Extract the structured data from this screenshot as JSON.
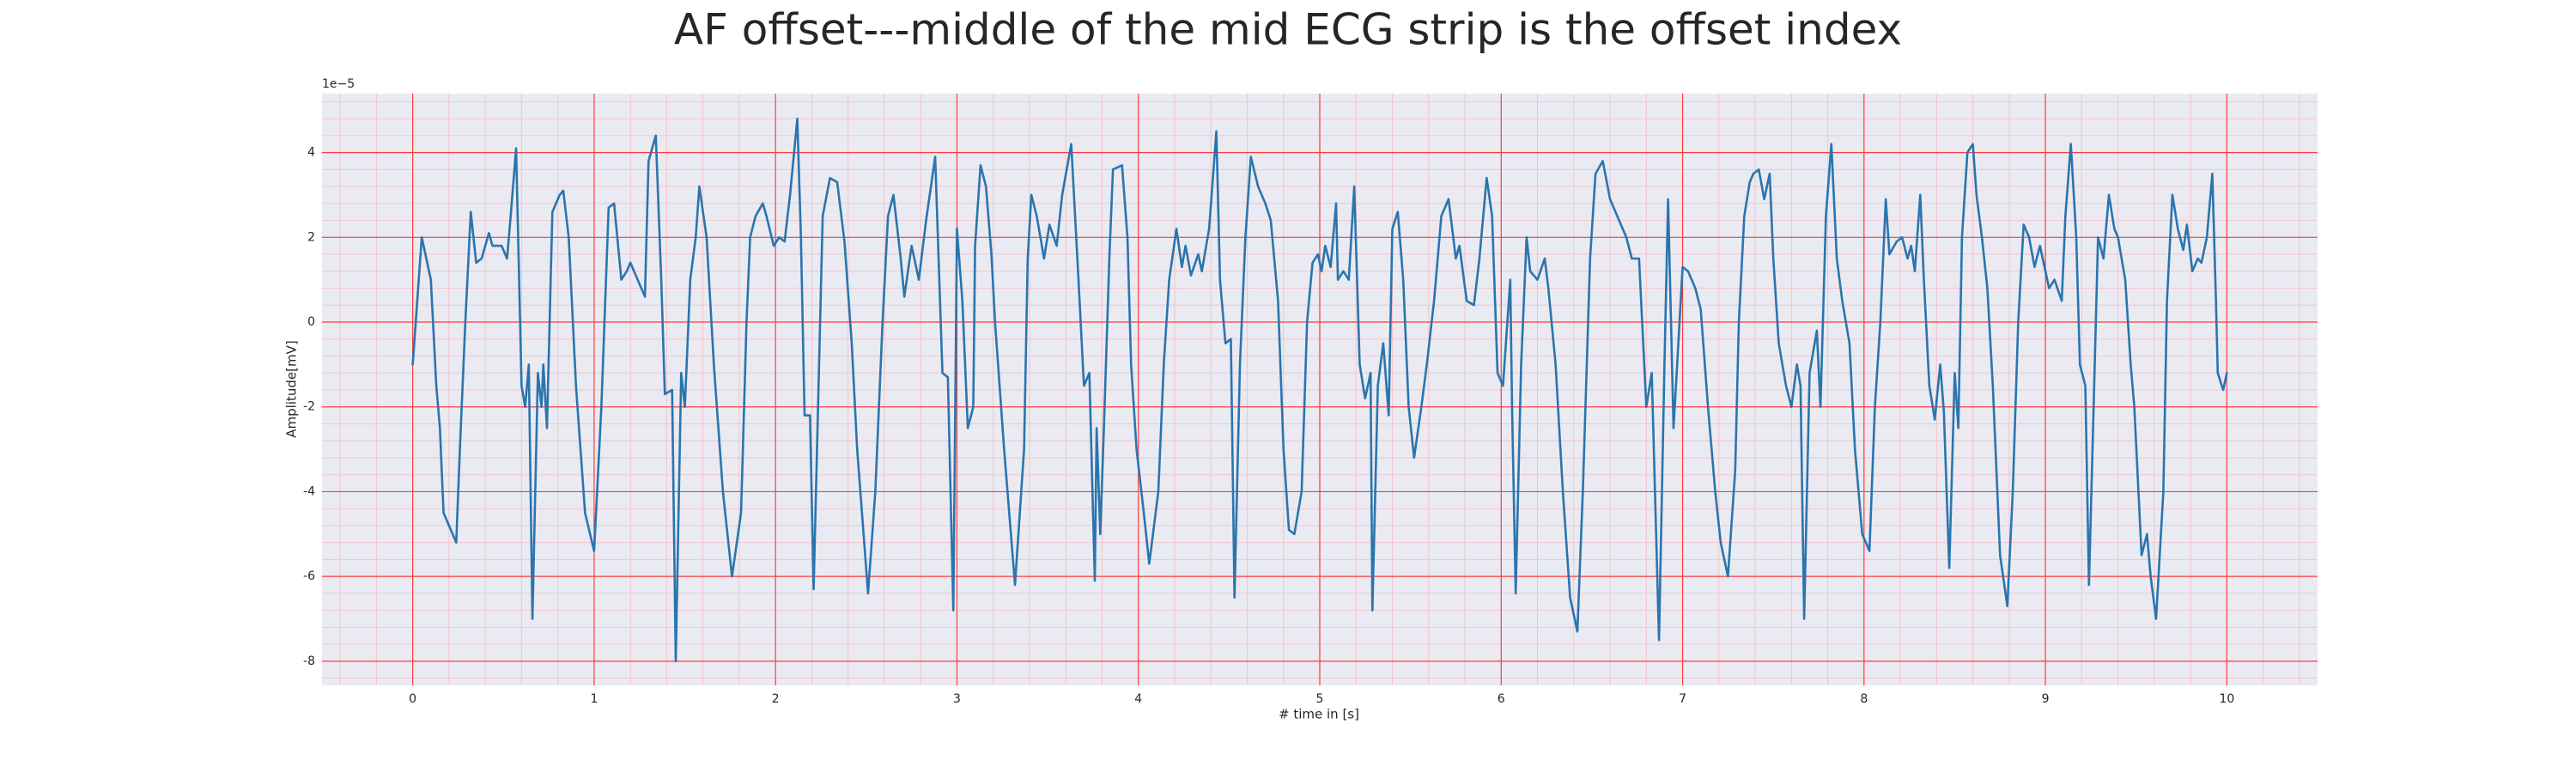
{
  "chart_data": {
    "type": "line",
    "title": "AF offset---middle of the mid ECG strip is the offset index",
    "x_label": "# time in [s]",
    "y_label": "Amplitude[mV]",
    "y_offset_text": "1e−5",
    "color": "#2a75ae",
    "background": "#eaeaf2",
    "grid": true,
    "grid_color": "#ff3b3b",
    "minor_grid": true,
    "minor_grid_color": "#f3c4cc",
    "xlim": [
      -0.5,
      10.5
    ],
    "ylim": [
      -8.57,
      5.39
    ],
    "xticks": [
      0,
      1,
      2,
      3,
      4,
      5,
      6,
      7,
      8,
      9,
      10
    ],
    "yticks": [
      -8,
      -6,
      -4,
      -2,
      0,
      2,
      4
    ],
    "x": [
      0.0,
      0.05,
      0.1,
      0.13,
      0.15,
      0.17,
      0.24,
      0.26,
      0.29,
      0.32,
      0.35,
      0.38,
      0.42,
      0.44,
      0.49,
      0.52,
      0.54,
      0.57,
      0.6,
      0.62,
      0.64,
      0.66,
      0.69,
      0.71,
      0.72,
      0.74,
      0.77,
      0.81,
      0.83,
      0.86,
      0.9,
      0.95,
      1.0,
      1.04,
      1.08,
      1.11,
      1.15,
      1.18,
      1.2,
      1.24,
      1.28,
      1.3,
      1.34,
      1.37,
      1.39,
      1.43,
      1.45,
      1.48,
      1.5,
      1.53,
      1.56,
      1.58,
      1.62,
      1.66,
      1.71,
      1.76,
      1.81,
      1.84,
      1.86,
      1.89,
      1.93,
      1.95,
      1.99,
      2.02,
      2.05,
      2.08,
      2.12,
      2.14,
      2.16,
      2.19,
      2.21,
      2.24,
      2.26,
      2.3,
      2.34,
      2.38,
      2.42,
      2.45,
      2.51,
      2.55,
      2.59,
      2.62,
      2.65,
      2.69,
      2.71,
      2.75,
      2.79,
      2.83,
      2.88,
      2.92,
      2.95,
      2.98,
      3.0,
      3.03,
      3.06,
      3.09,
      3.1,
      3.13,
      3.16,
      3.19,
      3.21,
      3.26,
      3.32,
      3.37,
      3.39,
      3.41,
      3.44,
      3.48,
      3.51,
      3.55,
      3.58,
      3.63,
      3.67,
      3.7,
      3.73,
      3.76,
      3.77,
      3.79,
      3.81,
      3.84,
      3.86,
      3.91,
      3.94,
      3.96,
      3.99,
      4.03,
      4.06,
      4.11,
      4.14,
      4.17,
      4.21,
      4.24,
      4.26,
      4.29,
      4.33,
      4.35,
      4.39,
      4.43,
      4.45,
      4.48,
      4.51,
      4.53,
      4.56,
      4.59,
      4.62,
      4.66,
      4.7,
      4.73,
      4.77,
      4.8,
      4.83,
      4.86,
      4.9,
      4.93,
      4.96,
      4.99,
      5.01,
      5.03,
      5.06,
      5.09,
      5.1,
      5.13,
      5.16,
      5.19,
      5.22,
      5.25,
      5.28,
      5.29,
      5.32,
      5.35,
      5.38,
      5.4,
      5.43,
      5.46,
      5.49,
      5.52,
      5.56,
      5.59,
      5.63,
      5.67,
      5.71,
      5.75,
      5.77,
      5.81,
      5.85,
      5.88,
      5.92,
      5.95,
      5.98,
      6.01,
      6.05,
      6.06,
      6.08,
      6.11,
      6.14,
      6.16,
      6.2,
      6.24,
      6.26,
      6.3,
      6.34,
      6.38,
      6.42,
      6.45,
      6.49,
      6.52,
      6.56,
      6.6,
      6.64,
      6.69,
      6.72,
      6.76,
      6.8,
      6.83,
      6.87,
      6.9,
      6.92,
      6.95,
      6.97,
      7.0,
      7.03,
      7.07,
      7.1,
      7.14,
      7.18,
      7.21,
      7.25,
      7.29,
      7.31,
      7.34,
      7.37,
      7.39,
      7.42,
      7.45,
      7.48,
      7.5,
      7.53,
      7.57,
      7.6,
      7.63,
      7.65,
      7.67,
      7.7,
      7.74,
      7.76,
      7.79,
      7.82,
      7.85,
      7.88,
      7.92,
      7.95,
      7.99,
      8.03,
      8.06,
      8.09,
      8.12,
      8.14,
      8.18,
      8.21,
      8.24,
      8.26,
      8.28,
      8.31,
      8.33,
      8.36,
      8.39,
      8.42,
      8.44,
      8.47,
      8.5,
      8.52,
      8.54,
      8.57,
      8.6,
      8.62,
      8.65,
      8.68,
      8.71,
      8.75,
      8.79,
      8.82,
      8.85,
      8.88,
      8.91,
      8.94,
      8.97,
      9.0,
      9.02,
      9.05,
      9.09,
      9.11,
      9.14,
      9.17,
      9.19,
      9.22,
      9.24,
      9.27,
      9.29,
      9.32,
      9.35,
      9.38,
      9.4,
      9.44,
      9.47,
      9.49,
      9.53,
      9.56,
      9.58,
      9.61,
      9.65,
      9.67,
      9.7,
      9.73,
      9.76,
      9.78,
      9.81,
      9.84,
      9.86,
      9.89,
      9.92,
      9.94,
      9.95,
      9.98,
      10.0
    ],
    "values": [
      -1,
      2.0,
      1.0,
      -1.5,
      -2.5,
      -4.5,
      -5.2,
      -3,
      0,
      2.6,
      1.4,
      1.5,
      2.1,
      1.8,
      1.8,
      1.5,
      2.5,
      4.1,
      -1.5,
      -2.0,
      -1,
      -7,
      -1.2,
      -2,
      -1,
      -2.5,
      2.6,
      3.0,
      3.1,
      2.0,
      -1.5,
      -4.5,
      -5.4,
      -2,
      2.7,
      2.8,
      1.0,
      1.2,
      1.4,
      1.0,
      0.6,
      3.8,
      4.4,
      1,
      -1.7,
      -1.6,
      -8.0,
      -1.2,
      -2,
      1.0,
      2,
      3.2,
      2.0,
      -1,
      -4,
      -6,
      -4.5,
      0,
      2.0,
      2.5,
      2.8,
      2.5,
      1.8,
      2.0,
      1.9,
      3.0,
      4.8,
      2,
      -2.2,
      -2.2,
      -6.3,
      -1,
      2.5,
      3.4,
      3.3,
      1.9,
      -0.5,
      -3,
      -6.4,
      -4,
      0,
      2.5,
      3.0,
      1.5,
      0.6,
      1.8,
      1.0,
      2.4,
      3.9,
      -1.2,
      -1.3,
      -6.8,
      2.2,
      0.5,
      -2.5,
      -2,
      1.8,
      3.7,
      3.2,
      1.6,
      0,
      -3,
      -6.2,
      -3,
      1.5,
      3.0,
      2.5,
      1.5,
      2.3,
      1.8,
      3.0,
      4.2,
      1,
      -1.5,
      -1.2,
      -6.1,
      -2.5,
      -5.0,
      -2.5,
      1.5,
      3.6,
      3.7,
      2,
      -1,
      -3,
      -4.5,
      -5.7,
      -4.0,
      -1,
      1.0,
      2.2,
      1.3,
      1.8,
      1.1,
      1.6,
      1.2,
      2.2,
      4.5,
      1,
      -0.5,
      -0.4,
      -6.5,
      -1,
      2.0,
      3.9,
      3.2,
      2.8,
      2.4,
      0.5,
      -3.0,
      -4.9,
      -5,
      -4.0,
      0,
      1.4,
      1.6,
      1.2,
      1.8,
      1.3,
      2.8,
      1.0,
      1.2,
      1.0,
      3.2,
      -1,
      -1.8,
      -1.2,
      -6.8,
      -1.5,
      -0.5,
      -2.2,
      2.2,
      2.6,
      1.0,
      -2.0,
      -3.2,
      -2.0,
      -1,
      0.5,
      2.5,
      2.9,
      1.5,
      1.8,
      0.5,
      0.4,
      1.5,
      3.4,
      2.5,
      -1.2,
      -1.5,
      1,
      -2,
      -6.4,
      -1,
      2.0,
      1.2,
      1.0,
      1.5,
      0.8,
      -1,
      -4,
      -6.5,
      -7.3,
      -4,
      1.5,
      3.5,
      3.8,
      2.9,
      2.5,
      2.0,
      1.5,
      1.5,
      -2.0,
      -1.2,
      -7.5,
      -1,
      2.9,
      -2.5,
      -1,
      1.3,
      1.2,
      0.8,
      0.3,
      -2.0,
      -4.0,
      -5.2,
      -6.0,
      -3.5,
      0,
      2.5,
      3.3,
      3.5,
      3.6,
      2.9,
      3.5,
      1.5,
      -0.5,
      -1.5,
      -2.0,
      -1.0,
      -1.5,
      -7.0,
      -1.2,
      -0.2,
      -2.0,
      2.5,
      4.2,
      1.5,
      0.5,
      -0.5,
      -3.0,
      -5,
      -5.4,
      -2,
      0,
      2.9,
      1.6,
      1.9,
      2.0,
      1.5,
      1.8,
      1.2,
      3.0,
      1.0,
      -1.5,
      -2.3,
      -1.0,
      -2.1,
      -5.8,
      -1.2,
      -2.5,
      2.0,
      4.0,
      4.2,
      3.0,
      2.0,
      0.8,
      -1.5,
      -5.5,
      -6.7,
      -4.0,
      0.0,
      2.3,
      2.0,
      1.3,
      1.8,
      1.2,
      0.8,
      1.0,
      0.5,
      2.5,
      4.2,
      2.0,
      -1.0,
      -1.5,
      -6.2,
      -1.3,
      2.0,
      1.5,
      3.0,
      2.2,
      2.0,
      1.0,
      -1.0,
      -2.0,
      -5.5,
      -5.0,
      -6.0,
      -7.0,
      -4.0,
      0.5,
      3.0,
      2.2,
      1.7,
      2.3,
      1.2,
      1.5,
      1.4,
      2.0,
      3.5,
      0.5,
      -1.2,
      -1.6,
      -1.2
    ]
  }
}
